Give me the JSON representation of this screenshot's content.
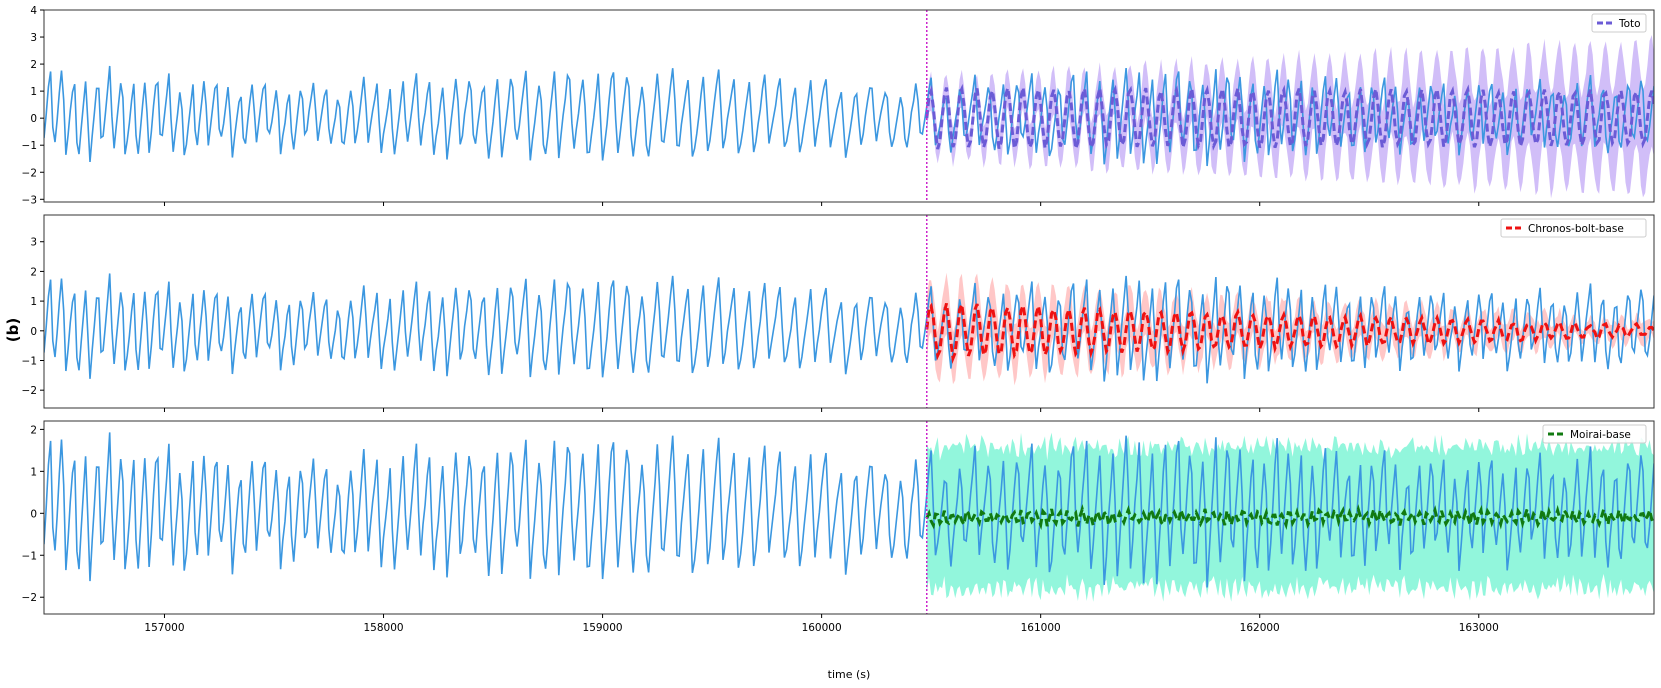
{
  "figure": {
    "panel_label": "(b)",
    "xlabel": "time (s)",
    "xlim": [
      156450,
      163800
    ],
    "xticks": [
      157000,
      158000,
      159000,
      160000,
      161000,
      162000,
      163000
    ],
    "forecast_start": 160480,
    "colors": {
      "observed": "#3b97e0",
      "divider": "#cc22cc",
      "axes": "#333333"
    }
  },
  "chart_data": [
    {
      "type": "line",
      "title": "",
      "legend_label": "Toto",
      "legend_position": "top-right",
      "ylim": [
        -3.1,
        4.0
      ],
      "yticks": [
        -3,
        -2,
        -1,
        0,
        1,
        2,
        3,
        4
      ],
      "forecast_color": "#6b5bd6",
      "band_color": "#c9b3f7",
      "forecast_amplitude": [
        1.1,
        1.0
      ],
      "band_halfwidth": [
        0.5,
        1.9
      ],
      "forecast_period_s": 70,
      "forecast_offset": 0.0
    },
    {
      "type": "line",
      "title": "",
      "legend_label": "Chronos-bolt-base",
      "legend_position": "top-right",
      "ylim": [
        -2.6,
        3.9
      ],
      "yticks": [
        -2,
        -1,
        0,
        1,
        2,
        3
      ],
      "forecast_color": "#ee1111",
      "band_color": "#ffbdbd",
      "forecast_amplitude": [
        0.9,
        0.15
      ],
      "band_halfwidth": [
        0.9,
        0.2
      ],
      "forecast_period_s": 70,
      "forecast_offset": 0.0
    },
    {
      "type": "line",
      "title": "",
      "legend_label": "Moirai-base",
      "legend_position": "top-right",
      "ylim": [
        -2.4,
        2.2
      ],
      "yticks": [
        -2,
        -1,
        0,
        1,
        2
      ],
      "forecast_color": "#117a11",
      "band_color": "#7ff5d6",
      "forecast_amplitude": [
        0.15,
        0.12
      ],
      "band_halfwidth": [
        1.6,
        1.6
      ],
      "forecast_period_s": 35,
      "forecast_offset": -0.1
    }
  ]
}
